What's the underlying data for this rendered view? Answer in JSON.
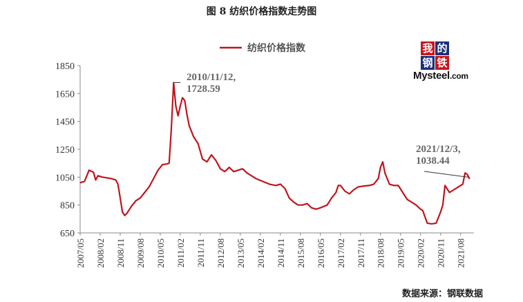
{
  "figure_title": "图 8  纺织价格指数走势图",
  "source_note": "数据来源：钢联数据",
  "logo": {
    "chars": [
      "我",
      "的",
      "钢",
      "铁"
    ],
    "text": "Mysteel",
    "suffix": ".com"
  },
  "colors": {
    "series": "#c0141c",
    "axis": "#888888",
    "logo_red": "#c8161d",
    "logo_blue": "#1a2f7a"
  },
  "chart_data": {
    "type": "line",
    "xlabel": "",
    "ylabel": "",
    "ylim": [
      650,
      1850
    ],
    "yticks": [
      650,
      850,
      1050,
      1250,
      1450,
      1650,
      1850
    ],
    "xlim": [
      "2007-05",
      "2022-02"
    ],
    "xticks": [
      "2007/05",
      "2008/02",
      "2008/11",
      "2009/08",
      "2010/05",
      "2011/02",
      "2011/11",
      "2012/08",
      "2013/05",
      "2014/02",
      "2014/11",
      "2015/08",
      "2016/05",
      "2017/02",
      "2017/11",
      "2018/08",
      "2019/05",
      "2020/02",
      "2020/11",
      "2021/08"
    ],
    "legend": {
      "position": "top-center"
    },
    "series": [
      {
        "name": "纺织价格指数",
        "points": [
          [
            "2007-05",
            1010
          ],
          [
            "2007-07",
            1020
          ],
          [
            "2007-09",
            1100
          ],
          [
            "2007-11",
            1085
          ],
          [
            "2007-12",
            1030
          ],
          [
            "2008-01",
            1060
          ],
          [
            "2008-03",
            1050
          ],
          [
            "2008-05",
            1045
          ],
          [
            "2008-07",
            1040
          ],
          [
            "2008-09",
            1030
          ],
          [
            "2008-10",
            1000
          ],
          [
            "2008-11",
            900
          ],
          [
            "2008-12",
            800
          ],
          [
            "2009-01",
            775
          ],
          [
            "2009-02",
            790
          ],
          [
            "2009-04",
            840
          ],
          [
            "2009-06",
            880
          ],
          [
            "2009-08",
            900
          ],
          [
            "2009-10",
            940
          ],
          [
            "2009-12",
            980
          ],
          [
            "2010-02",
            1040
          ],
          [
            "2010-04",
            1100
          ],
          [
            "2010-06",
            1140
          ],
          [
            "2010-08",
            1145
          ],
          [
            "2010-09",
            1150
          ],
          [
            "2010-10",
            1400
          ],
          [
            "2010-11",
            1728.59
          ],
          [
            "2010-12",
            1560
          ],
          [
            "2011-01",
            1490
          ],
          [
            "2011-02",
            1560
          ],
          [
            "2011-03",
            1620
          ],
          [
            "2011-04",
            1600
          ],
          [
            "2011-05",
            1500
          ],
          [
            "2011-06",
            1420
          ],
          [
            "2011-08",
            1340
          ],
          [
            "2011-10",
            1290
          ],
          [
            "2011-12",
            1180
          ],
          [
            "2012-02",
            1160
          ],
          [
            "2012-04",
            1210
          ],
          [
            "2012-06",
            1170
          ],
          [
            "2012-08",
            1110
          ],
          [
            "2012-10",
            1090
          ],
          [
            "2012-12",
            1120
          ],
          [
            "2013-02",
            1090
          ],
          [
            "2013-04",
            1100
          ],
          [
            "2013-06",
            1110
          ],
          [
            "2013-08",
            1080
          ],
          [
            "2013-10",
            1060
          ],
          [
            "2013-12",
            1040
          ],
          [
            "2014-03",
            1020
          ],
          [
            "2014-06",
            1000
          ],
          [
            "2014-09",
            990
          ],
          [
            "2014-11",
            1000
          ],
          [
            "2015-01",
            970
          ],
          [
            "2015-03",
            900
          ],
          [
            "2015-05",
            870
          ],
          [
            "2015-07",
            850
          ],
          [
            "2015-09",
            850
          ],
          [
            "2015-11",
            860
          ],
          [
            "2016-01",
            830
          ],
          [
            "2016-03",
            820
          ],
          [
            "2016-05",
            830
          ],
          [
            "2016-08",
            850
          ],
          [
            "2016-10",
            900
          ],
          [
            "2016-12",
            940
          ],
          [
            "2017-01",
            990
          ],
          [
            "2017-02",
            990
          ],
          [
            "2017-04",
            950
          ],
          [
            "2017-06",
            930
          ],
          [
            "2017-08",
            960
          ],
          [
            "2017-10",
            980
          ],
          [
            "2017-12",
            985
          ],
          [
            "2018-03",
            990
          ],
          [
            "2018-05",
            1000
          ],
          [
            "2018-07",
            1040
          ],
          [
            "2018-08",
            1120
          ],
          [
            "2018-09",
            1160
          ],
          [
            "2018-10",
            1080
          ],
          [
            "2018-12",
            1000
          ],
          [
            "2019-02",
            990
          ],
          [
            "2019-04",
            990
          ],
          [
            "2019-06",
            940
          ],
          [
            "2019-08",
            890
          ],
          [
            "2019-10",
            870
          ],
          [
            "2019-12",
            850
          ],
          [
            "2020-02",
            820
          ],
          [
            "2020-03",
            810
          ],
          [
            "2020-05",
            720
          ],
          [
            "2020-07",
            715
          ],
          [
            "2020-09",
            720
          ],
          [
            "2020-10",
            760
          ],
          [
            "2020-11",
            800
          ],
          [
            "2020-12",
            850
          ],
          [
            "2021-01",
            990
          ],
          [
            "2021-03",
            940
          ],
          [
            "2021-05",
            960
          ],
          [
            "2021-07",
            980
          ],
          [
            "2021-09",
            1000
          ],
          [
            "2021-10",
            1080
          ],
          [
            "2021-11",
            1070
          ],
          [
            "2021-12",
            1038.44
          ]
        ]
      }
    ],
    "annotations": [
      {
        "date": "2010-11",
        "value": 1728.59,
        "lines": [
          "2010/11/12,",
          "1728.59"
        ]
      },
      {
        "date": "2021-12",
        "value": 1038.44,
        "lines": [
          "2021/12/3,",
          "1038.44"
        ]
      }
    ]
  }
}
